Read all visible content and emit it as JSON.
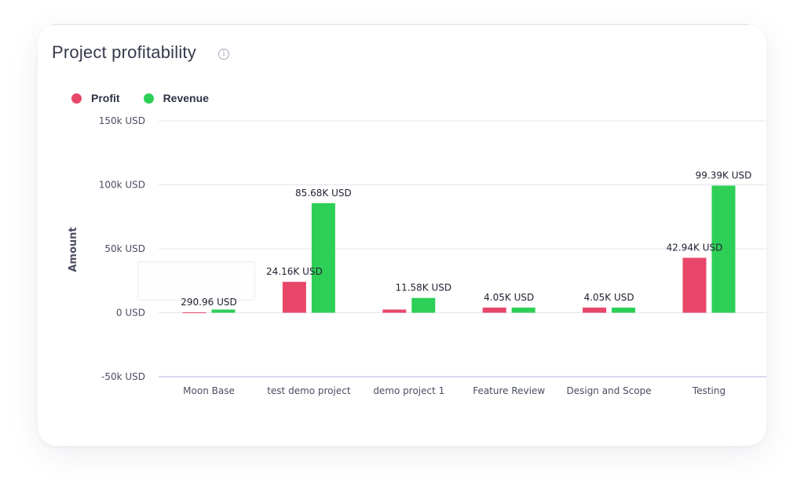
{
  "card": {
    "title": "Project profitability",
    "info_icon": "info-circle-icon"
  },
  "legend": [
    {
      "label": "Profit",
      "color": "#e8476a"
    },
    {
      "label": "Revenue",
      "color": "#2dcf57"
    }
  ],
  "chart_data": {
    "type": "bar",
    "ylabel": "Amount",
    "categories": [
      "Moon Base",
      "test demo project",
      "demo project 1",
      "Feature Review",
      "Design and Scope",
      "Testing"
    ],
    "series": [
      {
        "name": "Profit",
        "color": "#e8476a",
        "values": [
          290.96,
          24160,
          2500,
          4050,
          4050,
          42940
        ],
        "labels": [
          "290.96 USD",
          "24.16K USD",
          "",
          "4.05K USD",
          "4.05K USD",
          "42.94K USD"
        ]
      },
      {
        "name": "Revenue",
        "color": "#2dcf57",
        "values": [
          2500,
          85680,
          11580,
          4050,
          4050,
          99390
        ],
        "labels": [
          "",
          "85.68K USD",
          "11.58K USD",
          "",
          "",
          "99.39K USD"
        ]
      }
    ],
    "ylim": [
      -50000,
      150000
    ],
    "yticks": [
      150000,
      100000,
      50000,
      0,
      -50000
    ],
    "ytick_labels": [
      "150k USD",
      "100k USD",
      "50k USD",
      "0 USD",
      "-50k USD"
    ],
    "grid": true,
    "legend_position": "top-left"
  }
}
